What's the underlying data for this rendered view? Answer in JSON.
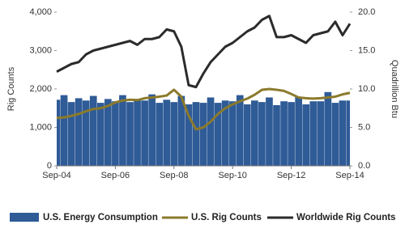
{
  "chart_data": {
    "type": "bar",
    "y_label": "Rig Counts",
    "y2_label": "Quadrillion Btu",
    "categories": [
      "Sep-04",
      null,
      null,
      null,
      null,
      null,
      null,
      null,
      "Sep-06",
      null,
      null,
      null,
      null,
      null,
      null,
      null,
      "Sep-08",
      null,
      null,
      null,
      null,
      null,
      null,
      null,
      "Sep-10",
      null,
      null,
      null,
      null,
      null,
      null,
      null,
      "Sep-12",
      null,
      null,
      null,
      null,
      null,
      null,
      null,
      "Sep-14"
    ],
    "ylim": [
      0,
      4000
    ],
    "yticks": [
      0,
      {
        "value": 1000,
        "label": "1,000"
      },
      {
        "value": 2000,
        "label": "2,000"
      },
      {
        "value": 3000,
        "label": "3,000"
      },
      {
        "value": 4000,
        "label": "4,000"
      }
    ],
    "y2lim": [
      0,
      20
    ],
    "y2ticks": [
      {
        "value": 0,
        "label": "0.0"
      },
      {
        "value": 5,
        "label": "5.0"
      },
      {
        "value": 10,
        "label": "10.0"
      },
      {
        "value": 15,
        "label": "15.0"
      },
      {
        "value": 20,
        "label": "20.0"
      }
    ],
    "series": [
      {
        "name": "U.S. Energy Consumption",
        "type": "bar",
        "axis": "y2",
        "color": "#2f5b97",
        "values": [
          8.6,
          9.2,
          8.3,
          8.8,
          8.5,
          9.1,
          8.2,
          8.7,
          8.4,
          9.2,
          8.3,
          8.7,
          8.5,
          9.3,
          8.2,
          8.6,
          8.3,
          9.1,
          8.0,
          8.3,
          8.2,
          8.9,
          8.2,
          8.5,
          8.4,
          9.2,
          8.0,
          8.5,
          8.3,
          8.9,
          7.9,
          8.4,
          8.3,
          9.0,
          8.0,
          8.4,
          8.4,
          9.6,
          8.2,
          8.5,
          8.5
        ]
      },
      {
        "name": "U.S. Rig Counts",
        "type": "line",
        "color": "#8b7a2c",
        "values": [
          1250,
          1260,
          1300,
          1350,
          1420,
          1480,
          1500,
          1560,
          1650,
          1700,
          1720,
          1710,
          1760,
          1780,
          1800,
          1830,
          1980,
          1800,
          1300,
          950,
          1000,
          1150,
          1350,
          1500,
          1600,
          1680,
          1750,
          1850,
          1980,
          2000,
          1980,
          1950,
          1870,
          1780,
          1760,
          1750,
          1760,
          1780,
          1800,
          1860,
          1900
        ]
      },
      {
        "name": "Worldwide Rig Counts",
        "type": "line",
        "color": "#2b2b2b",
        "values": [
          2450,
          2550,
          2650,
          2700,
          2900,
          3000,
          3050,
          3100,
          3150,
          3200,
          3250,
          3150,
          3300,
          3300,
          3350,
          3550,
          3500,
          3100,
          2100,
          2050,
          2400,
          2700,
          2900,
          3100,
          3200,
          3350,
          3500,
          3600,
          3800,
          3900,
          3350,
          3350,
          3400,
          3300,
          3200,
          3400,
          3450,
          3500,
          3750,
          3400,
          3700
        ]
      }
    ]
  }
}
